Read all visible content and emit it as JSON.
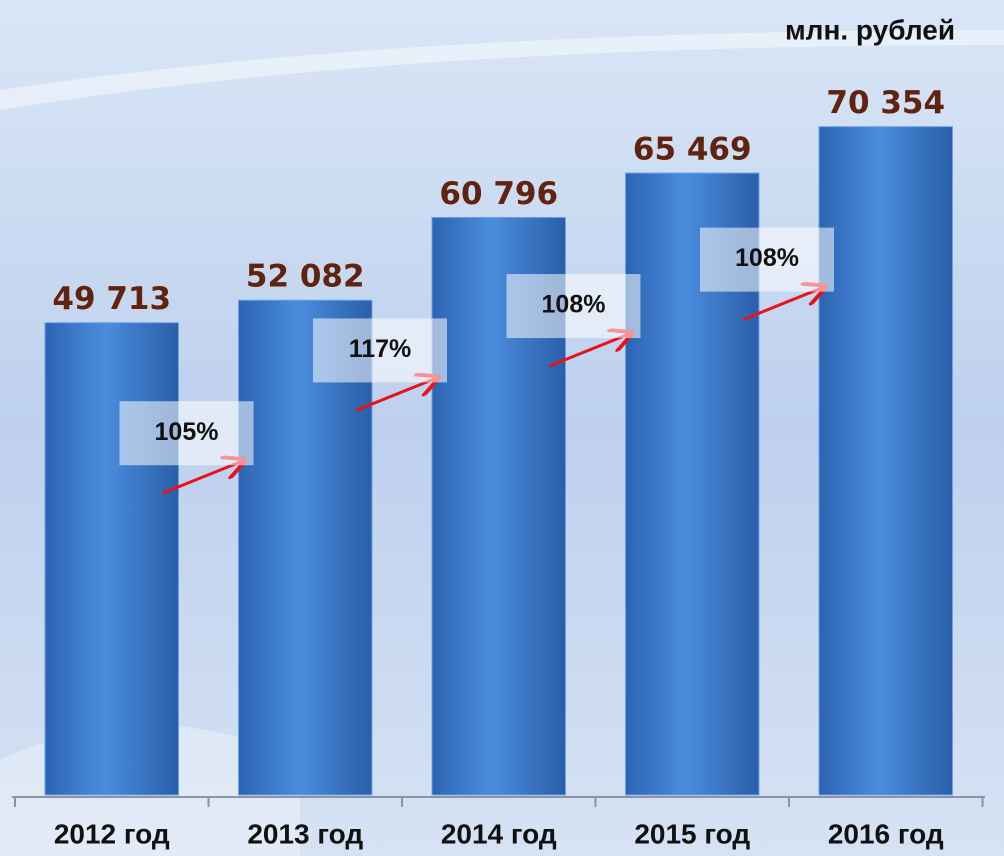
{
  "chart_data": {
    "type": "bar",
    "subtitle": "млн. рублей",
    "categories": [
      "2012 год",
      "2013 год",
      "2014 год",
      "2015 год",
      "2016 год"
    ],
    "values": [
      49713,
      52082,
      60796,
      65469,
      70354
    ],
    "value_labels": [
      "49 713",
      "52 082",
      "60 796",
      "65 469",
      "70 354"
    ],
    "annotations": [
      "105%",
      "117%",
      "108%",
      "108%"
    ],
    "color": "#3f7fd0",
    "ylim": [
      0,
      80000
    ]
  }
}
